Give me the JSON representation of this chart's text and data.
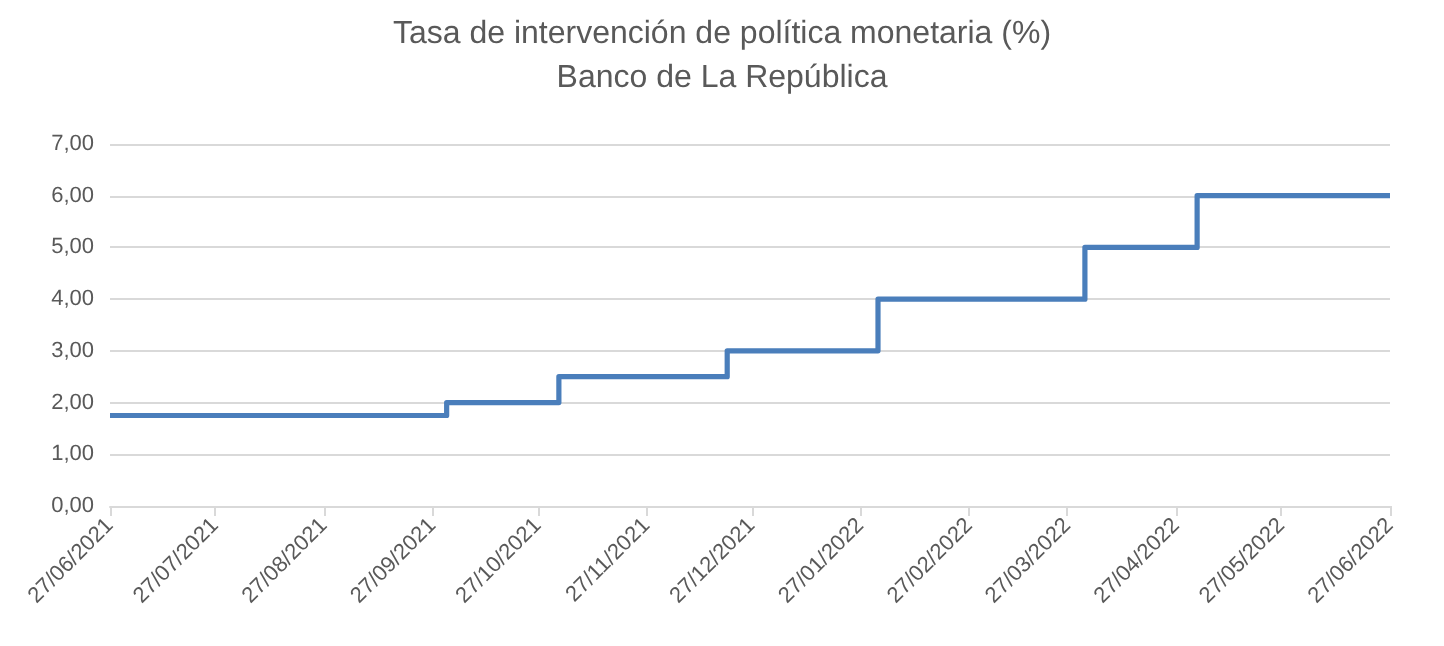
{
  "chart_data": {
    "type": "step",
    "title": "Tasa de intervención de política monetaria (%)",
    "subtitle": "Banco de La República",
    "x": [
      "2021-06-27",
      "2021-10-01",
      "2021-11-02",
      "2021-12-20",
      "2022-02-01",
      "2022-04-01",
      "2022-05-03",
      "2022-06-27"
    ],
    "values": [
      1.75,
      2.0,
      2.5,
      3.0,
      4.0,
      5.0,
      6.0,
      6.0
    ],
    "color": "#4a7ebb",
    "xlim": [
      "2021-06-27",
      "2022-06-27"
    ],
    "xticks": [
      {
        "value": "2021-06-27",
        "label": "27/06/2021"
      },
      {
        "value": "2021-07-27",
        "label": "27/07/2021"
      },
      {
        "value": "2021-08-27",
        "label": "27/08/2021"
      },
      {
        "value": "2021-09-27",
        "label": "27/09/2021"
      },
      {
        "value": "2021-10-27",
        "label": "27/10/2021"
      },
      {
        "value": "2021-11-27",
        "label": "27/11/2021"
      },
      {
        "value": "2021-12-27",
        "label": "27/12/2021"
      },
      {
        "value": "2022-01-27",
        "label": "27/01/2022"
      },
      {
        "value": "2022-02-27",
        "label": "27/02/2022"
      },
      {
        "value": "2022-03-27",
        "label": "27/03/2022"
      },
      {
        "value": "2022-04-27",
        "label": "27/04/2022"
      },
      {
        "value": "2022-05-27",
        "label": "27/05/2022"
      },
      {
        "value": "2022-06-27",
        "label": "27/06/2022"
      }
    ],
    "ylim": [
      0,
      7
    ],
    "yticks": [
      {
        "value": 0,
        "label": "0,00"
      },
      {
        "value": 1,
        "label": "1,00"
      },
      {
        "value": 2,
        "label": "2,00"
      },
      {
        "value": 3,
        "label": "3,00"
      },
      {
        "value": 4,
        "label": "4,00"
      },
      {
        "value": 5,
        "label": "5,00"
      },
      {
        "value": 6,
        "label": "6,00"
      },
      {
        "value": 7,
        "label": "7,00"
      }
    ],
    "grid": "y",
    "marker": "none",
    "line_style": "solid"
  }
}
